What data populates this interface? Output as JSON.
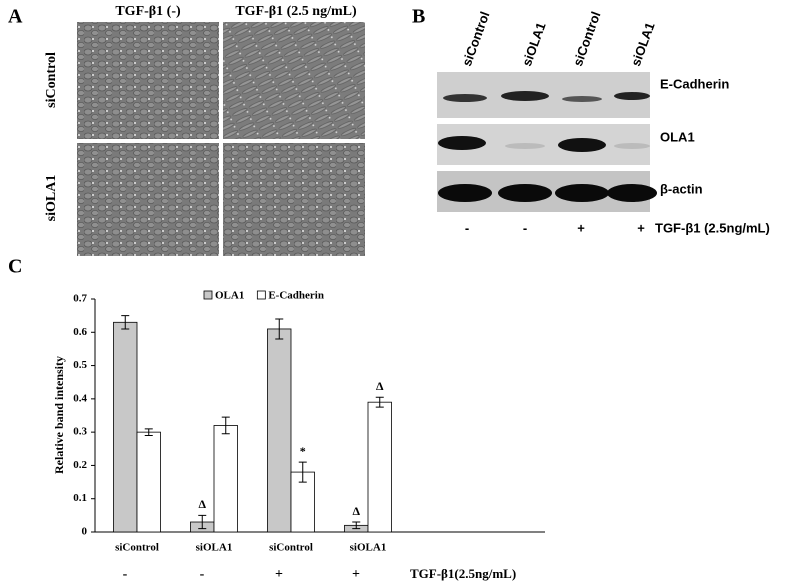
{
  "panel_a": {
    "label": "A",
    "columns": [
      "TGF-β1 (-)",
      "TGF-β1 (2.5 ng/mL)"
    ],
    "rows": [
      "siControl",
      "siOLA1"
    ]
  },
  "panel_b": {
    "label": "B",
    "lanes": [
      "siControl",
      "siOLA1",
      "siControl",
      "siOLA1"
    ],
    "bands": [
      "E-Cadherin",
      "OLA1",
      "β-actin"
    ],
    "treatment": [
      "-",
      "-",
      "+",
      "+"
    ],
    "treatment_label": "TGF-β1 (2.5ng/mL)"
  },
  "chart_data": {
    "type": "bar",
    "panel_label": "C",
    "y_label": "Relative band intensity",
    "categories": [
      "siControl",
      "siOLA1",
      "siControl",
      "siOLA1"
    ],
    "series": [
      {
        "name": "OLA1",
        "color": "#c8c8c8",
        "values": [
          0.63,
          0.03,
          0.61,
          0.02
        ],
        "errors": [
          0.02,
          0.02,
          0.03,
          0.01
        ],
        "markers": [
          null,
          "Δ",
          null,
          "Δ"
        ]
      },
      {
        "name": "E-Cadherin",
        "color": "#ffffff",
        "values": [
          0.3,
          0.32,
          0.18,
          0.39
        ],
        "errors": [
          0.01,
          0.025,
          0.03,
          0.015
        ],
        "markers": [
          null,
          null,
          "*",
          "Δ"
        ]
      }
    ],
    "ylim": [
      0,
      0.7
    ],
    "yticks": [
      0,
      0.1,
      0.2,
      0.3,
      0.4,
      0.5,
      0.6,
      0.7
    ],
    "legend": "top",
    "treatment": {
      "label": "TGF-β1(2.5ng/mL)",
      "values": [
        "-",
        "-",
        "+",
        "+"
      ]
    }
  }
}
